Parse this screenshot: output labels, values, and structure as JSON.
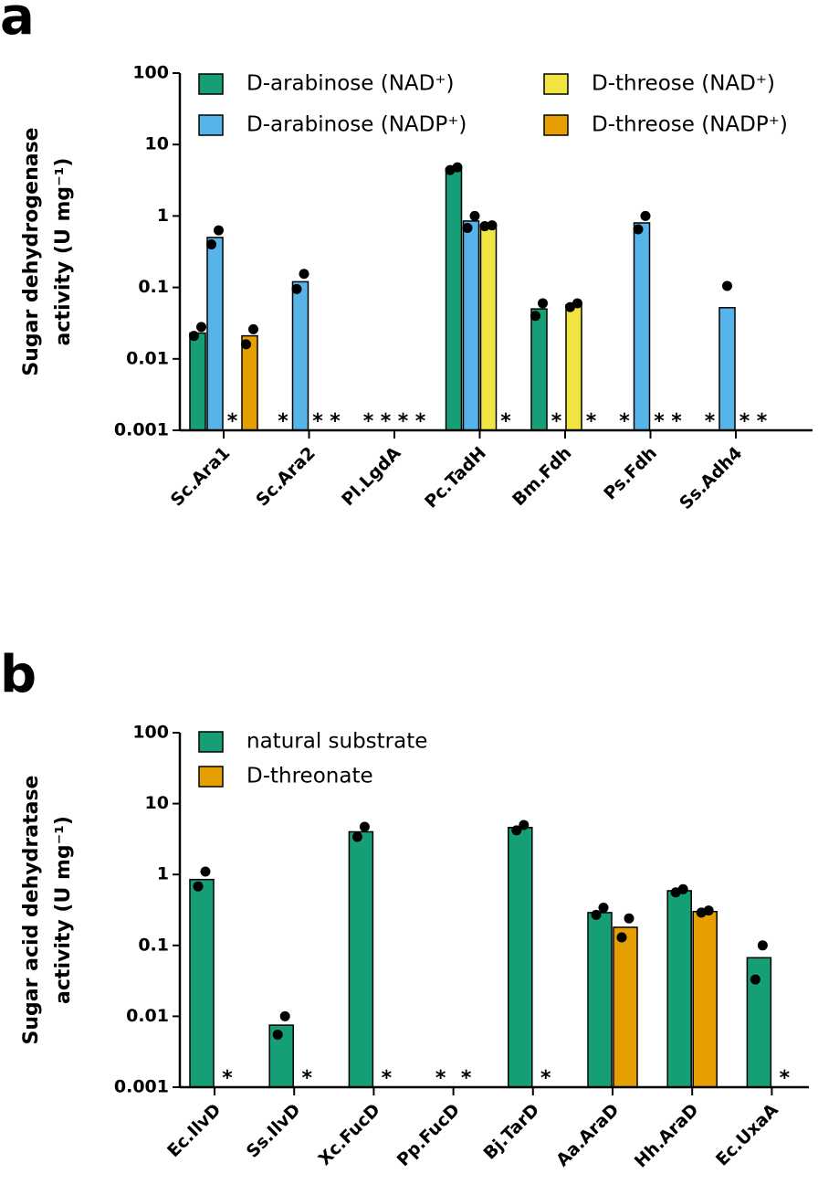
{
  "chart_data": [
    {
      "type": "bar",
      "panel_label": "a",
      "y_label": [
        "Sugar dehydrogenase",
        "activity (U mg⁻¹)"
      ],
      "log_scale": true,
      "ylim": [
        0.001,
        100
      ],
      "yticks": [
        0.001,
        0.01,
        0.1,
        1,
        10,
        100
      ],
      "categories": [
        "Sc.Ara1",
        "Sc.Ara2",
        "Pl.LgdA",
        "Pc.TadH",
        "Bm.Fdh",
        "Ps.Fdh",
        "Ss.Adh4"
      ],
      "series": [
        {
          "name": "D-arabinose (NAD⁺)",
          "color": "#169e76",
          "values": [
            0.023,
            null,
            null,
            4.6,
            0.05,
            null,
            null
          ],
          "value_labels": [
            null,
            "*",
            "*",
            null,
            null,
            "*",
            "*"
          ],
          "replicates": [
            [
              0.021,
              0.028
            ],
            [],
            [],
            [
              4.4,
              4.8
            ],
            [
              0.04,
              0.06
            ],
            [],
            []
          ]
        },
        {
          "name": "D-arabinose (NADP⁺)",
          "color": "#56b4e9",
          "values": [
            0.5,
            0.12,
            null,
            0.85,
            null,
            0.8,
            0.052
          ],
          "value_labels": [
            null,
            null,
            "*",
            null,
            "*",
            null,
            null
          ],
          "replicates": [
            [
              0.4,
              0.63
            ],
            [
              0.095,
              0.155
            ],
            [],
            [
              0.68,
              1.0
            ],
            [],
            [
              0.65,
              1.0
            ],
            [
              0.105
            ]
          ]
        },
        {
          "name": "D-threose (NAD⁺)",
          "color": "#f0e442",
          "values": [
            null,
            null,
            null,
            0.73,
            0.057,
            null,
            null
          ],
          "value_labels": [
            "*",
            "*",
            "*",
            null,
            null,
            "*",
            "*"
          ],
          "replicates": [
            [],
            [],
            [],
            [
              0.72,
              0.74
            ],
            [
              0.053,
              0.06
            ],
            [],
            []
          ]
        },
        {
          "name": "D-threose (NADP⁺)",
          "color": "#e69f00",
          "values": [
            0.021,
            null,
            null,
            null,
            null,
            null,
            null
          ],
          "value_labels": [
            null,
            "*",
            "*",
            "*",
            "*",
            "*",
            "*"
          ],
          "replicates": [
            [
              0.016,
              0.026
            ],
            [],
            [],
            [],
            [],
            [],
            []
          ]
        }
      ]
    },
    {
      "type": "bar",
      "panel_label": "b",
      "y_label": [
        "Sugar acid dehydratase",
        "activity (U mg⁻¹)"
      ],
      "log_scale": true,
      "ylim": [
        0.001,
        100
      ],
      "yticks": [
        0.001,
        0.01,
        0.1,
        1,
        10,
        100
      ],
      "categories": [
        "Ec.IlvD",
        "Ss.IlvD",
        "Xc.FucD",
        "Pp.FucD",
        "Bj.TarD",
        "Aa.AraD",
        "Hh.AraD",
        "Ec.UxaA"
      ],
      "series": [
        {
          "name": "natural substrate",
          "color": "#169e76",
          "values": [
            0.85,
            0.0075,
            4.0,
            null,
            4.6,
            0.29,
            0.59,
            0.067
          ],
          "value_labels": [
            null,
            null,
            null,
            "*",
            null,
            null,
            null,
            null
          ],
          "replicates": [
            [
              0.68,
              1.1
            ],
            [
              0.0055,
              0.01
            ],
            [
              3.4,
              4.7
            ],
            [],
            [
              4.2,
              5.0
            ],
            [
              0.27,
              0.34
            ],
            [
              0.56,
              0.62
            ],
            [
              0.033,
              0.1
            ]
          ]
        },
        {
          "name": "D-threonate",
          "color": "#e69f00",
          "values": [
            null,
            null,
            null,
            null,
            null,
            0.18,
            0.3,
            null
          ],
          "value_labels": [
            "*",
            "*",
            "*",
            "*",
            "*",
            null,
            null,
            "*"
          ],
          "replicates": [
            [],
            [],
            [],
            [],
            [],
            [
              0.13,
              0.24
            ],
            [
              0.29,
              0.31
            ],
            []
          ]
        }
      ]
    }
  ]
}
